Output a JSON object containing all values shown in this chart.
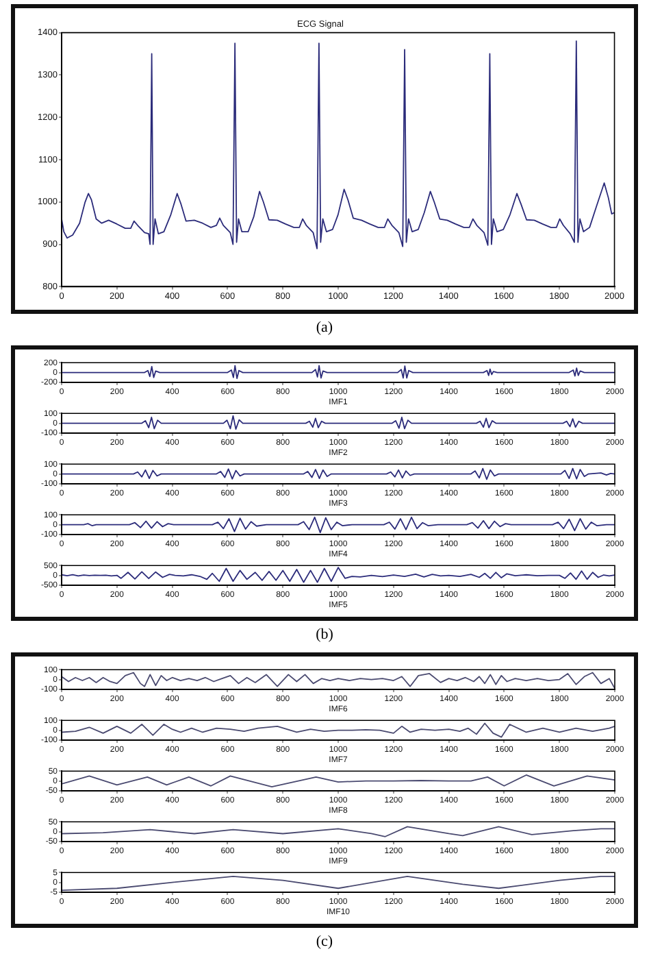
{
  "chart_data": [
    {
      "type": "line",
      "title": "ECG Signal",
      "annotations": [
        "(a)"
      ],
      "color": "#2b2b7a",
      "xlim": [
        0,
        2000
      ],
      "xticks": [
        0,
        200,
        400,
        600,
        800,
        1000,
        1200,
        1400,
        1600,
        1800,
        2000
      ],
      "ylim": [
        800,
        1400
      ],
      "yticks": [
        800,
        900,
        1000,
        1100,
        1200,
        1300,
        1400
      ],
      "x": [
        0,
        8,
        20,
        40,
        65,
        85,
        97,
        108,
        125,
        145,
        170,
        200,
        230,
        250,
        262,
        275,
        300,
        315,
        320,
        326,
        331,
        338,
        350,
        370,
        395,
        418,
        432,
        450,
        480,
        510,
        540,
        560,
        572,
        585,
        610,
        620,
        627,
        633,
        640,
        652,
        675,
        695,
        716,
        730,
        750,
        780,
        810,
        840,
        860,
        872,
        885,
        910,
        924,
        931,
        937,
        945,
        958,
        980,
        1000,
        1022,
        1036,
        1055,
        1085,
        1115,
        1145,
        1168,
        1180,
        1195,
        1220,
        1234,
        1241,
        1247,
        1255,
        1268,
        1290,
        1312,
        1334,
        1348,
        1368,
        1395,
        1425,
        1455,
        1475,
        1488,
        1502,
        1528,
        1542,
        1549,
        1555,
        1562,
        1575,
        1598,
        1622,
        1647,
        1662,
        1682,
        1710,
        1740,
        1770,
        1790,
        1802,
        1815,
        1840,
        1855,
        1862,
        1868,
        1875,
        1888,
        1910,
        1935,
        1963,
        1978,
        1990,
        2000
      ],
      "values": [
        960,
        930,
        915,
        922,
        950,
        1000,
        1020,
        1005,
        960,
        950,
        957,
        948,
        938,
        938,
        955,
        945,
        928,
        925,
        900,
        1350,
        900,
        960,
        925,
        930,
        970,
        1020,
        995,
        955,
        957,
        950,
        940,
        945,
        962,
        945,
        928,
        900,
        1375,
        905,
        960,
        930,
        930,
        965,
        1025,
        1000,
        958,
        957,
        948,
        940,
        940,
        960,
        945,
        928,
        890,
        1375,
        905,
        960,
        930,
        935,
        970,
        1030,
        1005,
        962,
        957,
        948,
        940,
        940,
        960,
        945,
        928,
        895,
        1360,
        905,
        960,
        930,
        935,
        975,
        1025,
        1000,
        960,
        957,
        948,
        940,
        940,
        960,
        945,
        928,
        898,
        1350,
        900,
        960,
        930,
        935,
        970,
        1020,
        995,
        958,
        957,
        948,
        940,
        940,
        960,
        945,
        925,
        905,
        1380,
        905,
        960,
        930,
        940,
        990,
        1045,
        1010,
        972,
        975
      ]
    },
    {
      "type": "line",
      "xlabel": "IMF1",
      "color": "#2b2b7a",
      "xlim": [
        0,
        2000
      ],
      "xticks": [
        0,
        200,
        400,
        600,
        800,
        1000,
        1200,
        1400,
        1600,
        1800,
        2000
      ],
      "ylim": [
        -200,
        200
      ],
      "yticks": [
        -200,
        0,
        200
      ],
      "x": [
        0,
        300,
        312,
        319,
        326,
        333,
        340,
        355,
        600,
        614,
        621,
        627,
        634,
        641,
        655,
        905,
        918,
        925,
        931,
        938,
        945,
        960,
        1215,
        1228,
        1235,
        1241,
        1248,
        1255,
        1270,
        1525,
        1538,
        1544,
        1549,
        1555,
        1561,
        1575,
        1835,
        1850,
        1856,
        1862,
        1868,
        1875,
        1890,
        2000
      ],
      "values": [
        0,
        0,
        40,
        -80,
        120,
        -100,
        30,
        0,
        0,
        50,
        -100,
        140,
        -120,
        40,
        0,
        0,
        60,
        -90,
        140,
        -110,
        30,
        0,
        0,
        60,
        -110,
        130,
        -110,
        40,
        0,
        0,
        40,
        -60,
        70,
        -40,
        20,
        0,
        0,
        50,
        -70,
        90,
        -60,
        30,
        0,
        0
      ]
    },
    {
      "type": "line",
      "xlabel": "IMF2",
      "color": "#2b2b7a",
      "xlim": [
        0,
        2000
      ],
      "xticks": [
        0,
        200,
        400,
        600,
        800,
        1000,
        1200,
        1400,
        1600,
        1800,
        2000
      ],
      "ylim": [
        -100,
        100
      ],
      "yticks": [
        -100,
        0,
        100
      ],
      "x": [
        0,
        290,
        303,
        315,
        325,
        335,
        347,
        360,
        585,
        598,
        610,
        620,
        630,
        642,
        655,
        883,
        896,
        908,
        918,
        928,
        940,
        953,
        1195,
        1208,
        1220,
        1230,
        1240,
        1252,
        1265,
        1500,
        1513,
        1525,
        1535,
        1545,
        1557,
        1570,
        1813,
        1826,
        1838,
        1848,
        1858,
        1870,
        1883,
        2000
      ],
      "values": [
        0,
        0,
        25,
        -45,
        60,
        -55,
        30,
        0,
        0,
        30,
        -55,
        75,
        -60,
        35,
        0,
        0,
        20,
        -40,
        50,
        -45,
        20,
        0,
        0,
        25,
        -50,
        60,
        -55,
        30,
        0,
        0,
        20,
        -40,
        50,
        -45,
        25,
        0,
        0,
        20,
        -35,
        45,
        -40,
        20,
        0,
        0
      ]
    },
    {
      "type": "line",
      "xlabel": "IMF3",
      "color": "#2b2b7a",
      "xlim": [
        0,
        2000
      ],
      "xticks": [
        0,
        200,
        400,
        600,
        800,
        1000,
        1200,
        1400,
        1600,
        1800,
        2000
      ],
      "ylim": [
        -100,
        100
      ],
      "yticks": [
        -100,
        0,
        100
      ],
      "x": [
        0,
        260,
        275,
        290,
        303,
        317,
        330,
        345,
        360,
        560,
        575,
        590,
        603,
        617,
        630,
        645,
        660,
        875,
        890,
        905,
        918,
        932,
        945,
        960,
        975,
        1175,
        1190,
        1205,
        1218,
        1232,
        1245,
        1260,
        1275,
        1480,
        1495,
        1510,
        1523,
        1537,
        1550,
        1565,
        1580,
        1805,
        1820,
        1835,
        1848,
        1862,
        1875,
        1890,
        1905,
        1950,
        1970,
        1985,
        2000
      ],
      "values": [
        0,
        0,
        20,
        -30,
        40,
        -45,
        35,
        -20,
        0,
        0,
        25,
        -35,
        50,
        -50,
        35,
        -20,
        0,
        0,
        25,
        -35,
        45,
        -45,
        40,
        -25,
        0,
        0,
        20,
        -30,
        40,
        -40,
        30,
        -15,
        0,
        0,
        30,
        -40,
        55,
        -55,
        40,
        -20,
        0,
        0,
        35,
        -45,
        55,
        -50,
        45,
        -25,
        0,
        10,
        -10,
        5,
        0
      ]
    },
    {
      "type": "line",
      "xlabel": "IMF4",
      "color": "#2b2b7a",
      "xlim": [
        0,
        2000
      ],
      "xticks": [
        0,
        200,
        400,
        600,
        800,
        1000,
        1200,
        1400,
        1600,
        1800,
        2000
      ],
      "ylim": [
        -100,
        100
      ],
      "yticks": [
        -100,
        0,
        100
      ],
      "x": [
        0,
        80,
        95,
        110,
        125,
        245,
        265,
        285,
        305,
        325,
        345,
        365,
        385,
        405,
        545,
        565,
        585,
        605,
        625,
        645,
        665,
        685,
        705,
        740,
        855,
        875,
        895,
        915,
        935,
        955,
        975,
        995,
        1015,
        1050,
        1165,
        1185,
        1205,
        1225,
        1245,
        1265,
        1285,
        1305,
        1325,
        1360,
        1465,
        1485,
        1505,
        1525,
        1545,
        1565,
        1585,
        1605,
        1625,
        1775,
        1795,
        1815,
        1835,
        1855,
        1875,
        1895,
        1915,
        1935,
        1970,
        2000
      ],
      "values": [
        0,
        0,
        10,
        -10,
        0,
        0,
        20,
        -30,
        35,
        -35,
        30,
        -20,
        10,
        0,
        0,
        25,
        -40,
        60,
        -70,
        65,
        -45,
        30,
        -15,
        0,
        0,
        30,
        -50,
        75,
        -80,
        70,
        -50,
        25,
        -10,
        0,
        0,
        25,
        -45,
        60,
        -50,
        75,
        -40,
        20,
        -10,
        0,
        0,
        20,
        -35,
        40,
        -40,
        35,
        -20,
        10,
        0,
        0,
        25,
        -40,
        55,
        -60,
        60,
        -45,
        25,
        -10,
        0,
        0
      ]
    },
    {
      "type": "line",
      "xlabel": "IMF5",
      "annotations": [
        "(b)"
      ],
      "color": "#2b2b7a",
      "xlim": [
        0,
        2000
      ],
      "xticks": [
        0,
        200,
        400,
        600,
        800,
        1000,
        1200,
        1400,
        1600,
        1800,
        2000
      ],
      "ylim": [
        -500,
        500
      ],
      "yticks": [
        -500,
        0,
        500
      ],
      "x": [
        0,
        20,
        40,
        60,
        80,
        100,
        120,
        140,
        160,
        180,
        200,
        215,
        240,
        265,
        290,
        315,
        340,
        365,
        390,
        410,
        440,
        470,
        500,
        525,
        545,
        570,
        595,
        620,
        645,
        670,
        700,
        725,
        750,
        775,
        800,
        825,
        850,
        875,
        900,
        925,
        950,
        975,
        1000,
        1025,
        1050,
        1080,
        1120,
        1160,
        1200,
        1240,
        1280,
        1310,
        1340,
        1370,
        1400,
        1440,
        1480,
        1510,
        1530,
        1550,
        1570,
        1590,
        1610,
        1640,
        1680,
        1720,
        1760,
        1800,
        1820,
        1840,
        1860,
        1880,
        1900,
        1920,
        1940,
        1960,
        1980,
        2000
      ],
      "values": [
        30,
        -20,
        30,
        -30,
        20,
        -10,
        10,
        0,
        10,
        -30,
        0,
        -150,
        150,
        -180,
        180,
        -160,
        170,
        -100,
        50,
        0,
        -30,
        30,
        -50,
        -200,
        100,
        -300,
        350,
        -300,
        250,
        -200,
        150,
        -250,
        200,
        -250,
        250,
        -300,
        300,
        -350,
        250,
        -350,
        350,
        -300,
        400,
        -150,
        -50,
        -80,
        0,
        -60,
        20,
        -50,
        60,
        -80,
        50,
        -30,
        0,
        -50,
        50,
        -100,
        100,
        -150,
        150,
        -120,
        80,
        -20,
        30,
        -20,
        0,
        0,
        -150,
        120,
        -200,
        220,
        -200,
        150,
        -100,
        20,
        -30,
        20
      ]
    },
    {
      "type": "line",
      "xlabel": "IMF6",
      "color": "#4a4a70",
      "xlim": [
        0,
        2000
      ],
      "xticks": [
        0,
        200,
        400,
        600,
        800,
        1000,
        1200,
        1400,
        1600,
        1800,
        2000
      ],
      "ylim": [
        -100,
        100
      ],
      "yticks": [
        -100,
        0,
        100
      ],
      "x": [
        0,
        25,
        50,
        75,
        100,
        125,
        150,
        175,
        200,
        230,
        260,
        285,
        300,
        320,
        340,
        360,
        380,
        400,
        430,
        460,
        490,
        520,
        550,
        580,
        610,
        640,
        670,
        700,
        740,
        780,
        820,
        850,
        880,
        910,
        940,
        970,
        1000,
        1040,
        1080,
        1120,
        1160,
        1200,
        1230,
        1260,
        1290,
        1330,
        1370,
        1400,
        1430,
        1460,
        1490,
        1510,
        1530,
        1550,
        1570,
        1590,
        1610,
        1640,
        1680,
        1720,
        1760,
        1800,
        1830,
        1860,
        1890,
        1920,
        1950,
        1980,
        2000
      ],
      "values": [
        30,
        -20,
        20,
        -10,
        20,
        -30,
        20,
        -20,
        -40,
        40,
        70,
        -40,
        -70,
        50,
        -60,
        40,
        -10,
        20,
        -10,
        10,
        -10,
        20,
        -20,
        10,
        40,
        -40,
        20,
        -30,
        50,
        -70,
        50,
        -20,
        50,
        -40,
        10,
        -10,
        10,
        -10,
        10,
        0,
        10,
        -10,
        30,
        -70,
        40,
        60,
        -30,
        10,
        -10,
        20,
        -20,
        30,
        -40,
        50,
        -50,
        40,
        -20,
        10,
        -10,
        10,
        -10,
        0,
        60,
        -50,
        30,
        70,
        -40,
        10,
        -90
      ]
    },
    {
      "type": "line",
      "xlabel": "IMF7",
      "color": "#4a4a70",
      "xlim": [
        0,
        2000
      ],
      "xticks": [
        0,
        200,
        400,
        600,
        800,
        1000,
        1200,
        1400,
        1600,
        1800,
        2000
      ],
      "ylim": [
        -100,
        100
      ],
      "yticks": [
        -100,
        0,
        100
      ],
      "x": [
        0,
        50,
        100,
        150,
        200,
        250,
        290,
        330,
        370,
        400,
        430,
        470,
        510,
        560,
        610,
        660,
        710,
        780,
        850,
        900,
        950,
        1000,
        1050,
        1100,
        1150,
        1200,
        1230,
        1260,
        1300,
        1350,
        1400,
        1440,
        1470,
        1500,
        1530,
        1560,
        1590,
        1620,
        1680,
        1740,
        1800,
        1860,
        1920,
        1980,
        2000
      ],
      "values": [
        -20,
        -10,
        30,
        -30,
        40,
        -30,
        60,
        -50,
        60,
        10,
        -20,
        20,
        -20,
        20,
        10,
        -10,
        20,
        40,
        -20,
        10,
        -10,
        0,
        0,
        5,
        0,
        -30,
        40,
        -20,
        10,
        0,
        10,
        -10,
        20,
        -40,
        70,
        -30,
        -70,
        60,
        -20,
        20,
        -20,
        20,
        -10,
        20,
        40
      ]
    },
    {
      "type": "line",
      "xlabel": "IMF8",
      "color": "#4a4a70",
      "xlim": [
        0,
        2000
      ],
      "xticks": [
        0,
        200,
        400,
        600,
        800,
        1000,
        1200,
        1400,
        1600,
        1800,
        2000
      ],
      "ylim": [
        -50,
        50
      ],
      "yticks": [
        -50,
        0,
        50
      ],
      "x": [
        0,
        100,
        200,
        310,
        380,
        460,
        540,
        610,
        760,
        920,
        1000,
        1100,
        1200,
        1300,
        1400,
        1480,
        1540,
        1600,
        1680,
        1780,
        1840,
        1900,
        2000
      ],
      "values": [
        -15,
        25,
        -20,
        20,
        -20,
        20,
        -25,
        25,
        -30,
        20,
        -5,
        0,
        0,
        2,
        0,
        0,
        20,
        -25,
        30,
        -25,
        0,
        25,
        5
      ]
    },
    {
      "type": "line",
      "xlabel": "IMF9",
      "color": "#4a4a70",
      "xlim": [
        0,
        2000
      ],
      "xticks": [
        0,
        200,
        400,
        600,
        800,
        1000,
        1200,
        1400,
        1600,
        1800,
        2000
      ],
      "ylim": [
        -50,
        50
      ],
      "yticks": [
        -50,
        0,
        50
      ],
      "x": [
        0,
        150,
        320,
        480,
        620,
        800,
        1000,
        1120,
        1170,
        1250,
        1400,
        1450,
        1580,
        1700,
        1850,
        1950,
        2000
      ],
      "values": [
        -10,
        -5,
        10,
        -10,
        10,
        -10,
        15,
        -10,
        -25,
        25,
        -10,
        -20,
        25,
        -15,
        5,
        15,
        15
      ]
    },
    {
      "type": "line",
      "xlabel": "IMF10",
      "annotations": [
        "(c)"
      ],
      "color": "#4a4a70",
      "xlim": [
        0,
        2000
      ],
      "xticks": [
        0,
        200,
        400,
        600,
        800,
        1000,
        1200,
        1400,
        1600,
        1800,
        2000
      ],
      "ylim": [
        -5,
        5
      ],
      "yticks": [
        -5,
        0,
        5
      ],
      "x": [
        0,
        200,
        400,
        620,
        800,
        1000,
        1250,
        1450,
        1580,
        1800,
        1950,
        2000
      ],
      "values": [
        -4,
        -3,
        0,
        3,
        1,
        -3,
        3,
        -1,
        -3,
        1,
        3,
        3
      ]
    }
  ]
}
